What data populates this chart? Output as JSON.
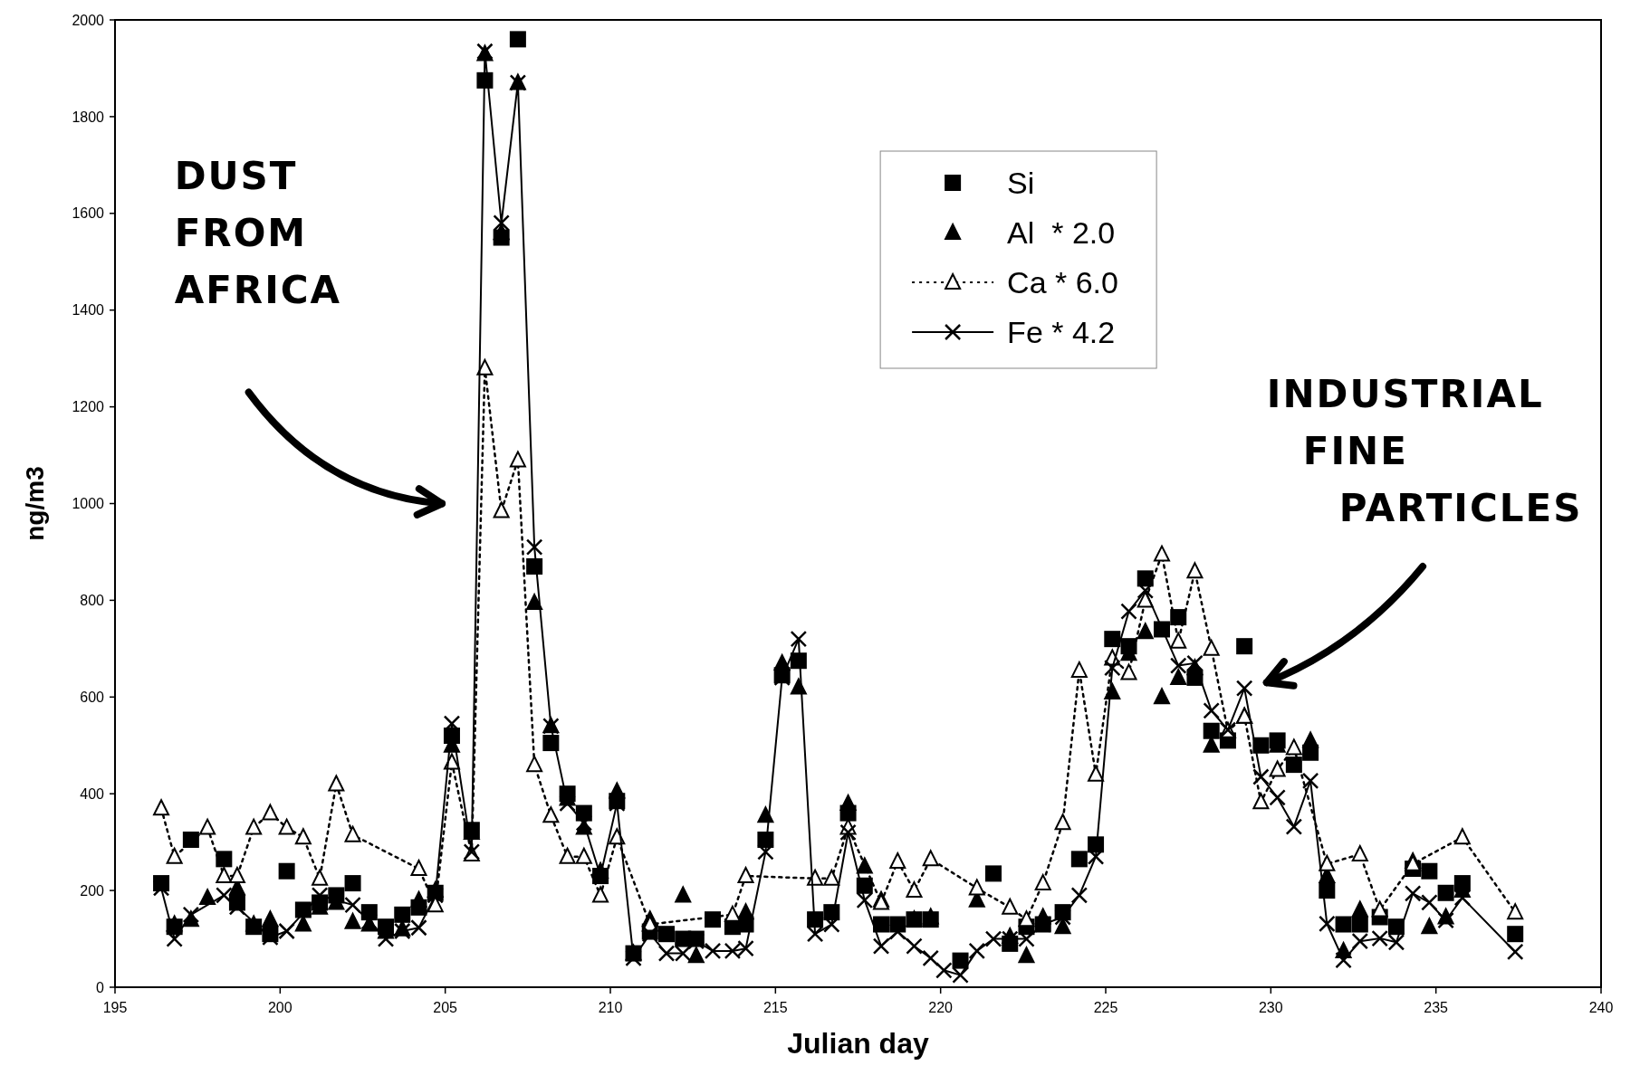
{
  "chart_data": {
    "type": "scatter",
    "xlabel": "Julian day",
    "ylabel": "ng/m3",
    "xlim": [
      195,
      240
    ],
    "xticks": [
      195,
      200,
      205,
      210,
      215,
      220,
      225,
      230,
      235,
      240
    ],
    "ylim": [
      0,
      2000
    ],
    "yticks": [
      0,
      200,
      400,
      600,
      800,
      1000,
      1200,
      1400,
      1600,
      1800,
      2000
    ],
    "grid": false,
    "legend": "top right",
    "annotations": [
      "DUST FROM AFRICA",
      "INDUSTRIAL FINE PARTICLES"
    ],
    "series": [
      {
        "name": "Si",
        "color": "#000000",
        "marker": "square",
        "x": [
          196.4,
          196.8,
          197.3,
          198.3,
          198.7,
          199.2,
          199.7,
          200.2,
          200.7,
          201.2,
          201.7,
          202.2,
          202.7,
          203.2,
          203.7,
          204.2,
          204.7,
          205.2,
          205.8,
          206.2,
          206.7,
          207.2,
          207.7,
          208.2,
          208.7,
          209.2,
          209.7,
          210.2,
          210.7,
          211.2,
          211.7,
          212.2,
          212.6,
          213.1,
          213.7,
          214.1,
          214.7,
          215.2,
          215.7,
          216.2,
          216.7,
          217.2,
          217.7,
          218.2,
          218.7,
          219.2,
          219.7,
          220.6,
          221.6,
          222.1,
          222.6,
          223.1,
          223.7,
          224.2,
          224.7,
          225.2,
          225.7,
          226.2,
          226.7,
          227.2,
          227.7,
          228.2,
          228.7,
          229.2,
          229.7,
          230.2,
          230.7,
          231.2,
          231.7,
          232.2,
          232.7,
          233.3,
          233.8,
          234.3,
          234.8,
          235.3,
          235.8,
          237.4
        ],
        "values": [
          215,
          125,
          305,
          265,
          175,
          125,
          110,
          240,
          160,
          175,
          190,
          215,
          155,
          125,
          150,
          165,
          195,
          520,
          325,
          1875,
          1550,
          1960,
          870,
          505,
          400,
          360,
          230,
          385,
          70,
          115,
          110,
          100,
          100,
          140,
          125,
          130,
          305,
          645,
          675,
          140,
          155,
          360,
          210,
          130,
          130,
          140,
          140,
          55,
          235,
          90,
          125,
          130,
          155,
          265,
          295,
          720,
          705,
          845,
          740,
          765,
          640,
          530,
          510,
          705,
          500,
          510,
          460,
          485,
          200,
          130,
          130,
          145,
          125,
          245,
          240,
          195,
          215,
          110
        ]
      },
      {
        "name": "Al  * 2.0",
        "color": "#000000",
        "marker": "triangle",
        "x": [
          196.8,
          197.3,
          197.8,
          198.7,
          199.2,
          199.7,
          200.7,
          201.2,
          201.7,
          202.2,
          202.7,
          203.2,
          203.7,
          204.2,
          204.7,
          205.2,
          205.8,
          206.2,
          206.7,
          207.2,
          207.7,
          208.2,
          208.7,
          209.2,
          209.7,
          210.2,
          210.7,
          211.2,
          212.2,
          212.6,
          214.1,
          214.7,
          215.2,
          215.7,
          217.2,
          217.7,
          218.2,
          219.2,
          219.7,
          221.1,
          222.1,
          222.6,
          223.1,
          223.7,
          225.2,
          225.7,
          226.2,
          226.7,
          227.2,
          227.7,
          228.2,
          229.2,
          230.2,
          231.2,
          231.7,
          232.2,
          232.7,
          234.3,
          234.8,
          235.3,
          235.8
        ],
        "values": [
          130,
          140,
          185,
          205,
          130,
          140,
          130,
          165,
          175,
          135,
          130,
          115,
          120,
          180,
          200,
          500,
          320,
          1930,
          1560,
          1870,
          795,
          540,
          390,
          330,
          240,
          405,
          70,
          140,
          190,
          65,
          155,
          355,
          670,
          620,
          380,
          250,
          180,
          140,
          145,
          180,
          105,
          65,
          145,
          125,
          610,
          690,
          735,
          600,
          640,
          660,
          500,
          560,
          500,
          510,
          230,
          75,
          160,
          260,
          125,
          145,
          200
        ]
      },
      {
        "name": "Ca * 6.0",
        "type": "line",
        "color": "#000000",
        "marker": "triangle",
        "line_style": "dotted",
        "x": [
          196.4,
          196.8,
          197.8,
          198.3,
          198.7,
          199.2,
          199.7,
          200.2,
          200.7,
          201.2,
          201.7,
          202.2,
          204.2,
          204.7,
          205.2,
          205.8,
          206.2,
          206.7,
          207.2,
          207.7,
          208.2,
          208.7,
          209.2,
          209.7,
          210.2,
          211.2,
          213.7,
          214.1,
          216.2,
          216.7,
          217.2,
          218.2,
          218.7,
          219.2,
          219.7,
          221.1,
          222.1,
          222.6,
          223.1,
          223.7,
          224.2,
          224.7,
          225.2,
          225.7,
          226.2,
          226.7,
          227.2,
          227.7,
          228.2,
          228.7,
          229.2,
          229.7,
          230.2,
          230.7,
          231.7,
          232.7,
          233.3,
          234.3,
          235.8,
          237.4
        ],
        "values": [
          370,
          270,
          330,
          230,
          230,
          330,
          360,
          330,
          310,
          225,
          420,
          315,
          245,
          170,
          465,
          275,
          1280,
          985,
          1090,
          460,
          355,
          270,
          270,
          190,
          310,
          130,
          150,
          230,
          225,
          225,
          330,
          175,
          260,
          200,
          265,
          205,
          165,
          140,
          215,
          340,
          655,
          440,
          680,
          650,
          800,
          895,
          715,
          860,
          700,
          530,
          560,
          383,
          450,
          495,
          255,
          275,
          160,
          255,
          310,
          155
        ]
      },
      {
        "name": "Fe * 4.2",
        "type": "line",
        "color": "#000000",
        "marker": "cross",
        "line_style": "solid",
        "x": [
          196.4,
          196.8,
          197.3,
          198.3,
          198.7,
          199.7,
          200.2,
          201.2,
          202.2,
          202.7,
          203.2,
          203.7,
          204.2,
          204.7,
          205.2,
          205.8,
          206.2,
          206.7,
          207.2,
          207.7,
          208.2,
          208.7,
          209.2,
          209.7,
          210.2,
          210.7,
          211.2,
          211.7,
          212.2,
          212.6,
          213.1,
          213.7,
          214.1,
          214.7,
          215.2,
          215.7,
          216.2,
          216.7,
          217.2,
          217.7,
          218.2,
          218.7,
          219.2,
          219.7,
          220.1,
          220.6,
          221.1,
          221.6,
          222.1,
          222.6,
          223.1,
          223.7,
          224.2,
          224.7,
          225.2,
          225.7,
          226.2,
          227.2,
          227.7,
          228.2,
          228.7,
          229.2,
          229.7,
          230.2,
          230.7,
          231.2,
          231.7,
          232.2,
          232.7,
          233.3,
          233.8,
          234.3,
          234.8,
          235.3,
          235.8,
          237.4
        ],
        "values": [
          205,
          100,
          150,
          190,
          166,
          103,
          116,
          190,
          170,
          136,
          100,
          116,
          123,
          190,
          545,
          280,
          1935,
          1580,
          1870,
          910,
          540,
          380,
          340,
          230,
          380,
          60,
          110,
          70,
          70,
          95,
          75,
          75,
          80,
          280,
          640,
          720,
          110,
          130,
          320,
          180,
          85,
          115,
          85,
          60,
          35,
          25,
          75,
          100,
          100,
          100,
          130,
          145,
          190,
          270,
          660,
          777,
          820,
          665,
          670,
          572,
          532,
          618,
          435,
          392,
          332,
          427,
          131,
          56,
          95,
          101,
          93,
          194,
          175,
          138,
          185,
          73
        ]
      }
    ]
  }
}
